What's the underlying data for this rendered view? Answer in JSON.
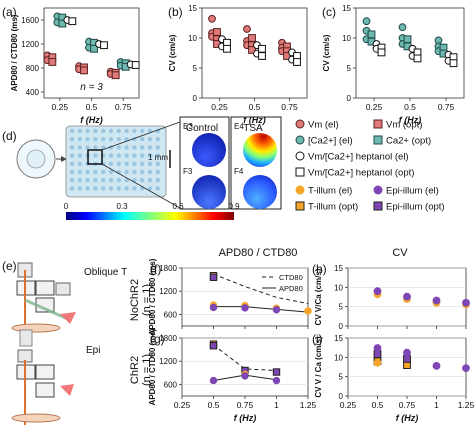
{
  "chart_data": [
    {
      "panel": "(a)",
      "type": "scatter",
      "ylabel": "APD80 / CTD80 (ms)",
      "xlabel": "f (Hz)",
      "categories": [
        "0.25",
        "0.5",
        "0.75"
      ],
      "yticks": [
        "400",
        "800",
        "1200",
        "1600"
      ],
      "ylim": [
        300,
        1800
      ],
      "annotation": "n = 3",
      "series": [
        {
          "name": "Vm (el)",
          "values": [
            [
              1010,
              930
            ],
            [
              830,
              780
            ],
            [
              740,
              700
            ]
          ]
        },
        {
          "name": "Vm (opt)",
          "values": [
            [
              980,
              900
            ],
            [
              810,
              760
            ],
            [
              720,
              680
            ]
          ]
        },
        {
          "name": "[Ca2+] (el)",
          "values": [
            [
              1660,
              1560
            ],
            [
              1240,
              1140
            ],
            [
              900,
              840
            ]
          ]
        },
        {
          "name": "Ca2+ (opt)",
          "values": [
            [
              1640,
              1540
            ],
            [
              1220,
              1120
            ],
            [
              880,
              820
            ]
          ]
        },
        {
          "name": "Vm/[Ca2+] heptanol (el)",
          "values": [
            [
              1600
            ],
            [
              1200
            ],
            [
              860
            ]
          ]
        },
        {
          "name": "Vm/[Ca2+] heptanol (opt)",
          "values": [
            [
              1580
            ],
            [
              1180
            ],
            [
              850
            ]
          ]
        }
      ]
    },
    {
      "panel": "(b)",
      "type": "scatter",
      "ylabel": "CV (cm/s)",
      "xlabel": "f (Hz)",
      "categories": [
        "0.25",
        "0.5",
        "0.75"
      ],
      "yticks": [
        "0",
        "5",
        "10",
        "15"
      ],
      "ylim": [
        0,
        15
      ],
      "series": [
        {
          "name": "Vm (el)",
          "values": [
            [
              13.2,
              10.8,
              10.2
            ],
            [
              11.5,
              9.5,
              8.8
            ],
            [
              9.2,
              8.4,
              7.8
            ]
          ]
        },
        {
          "name": "Vm (opt)",
          "values": [
            [
              11.0,
              9.8,
              9.0
            ],
            [
              10.0,
              8.8,
              8.0
            ],
            [
              8.6,
              7.8,
              7.0
            ]
          ]
        },
        {
          "name": "Vm/[Ca2+] heptanol (el)",
          "values": [
            [
              9.8,
              8.6
            ],
            [
              8.8,
              7.4
            ],
            [
              7.6,
              6.4
            ]
          ]
        },
        {
          "name": "Vm/[Ca2+] heptanol (opt)",
          "values": [
            [
              9.2,
              8.2
            ],
            [
              8.2,
              7.0
            ],
            [
              7.0,
              6.0
            ]
          ]
        }
      ]
    },
    {
      "panel": "(c)",
      "type": "scatter",
      "ylabel": "CV (cm/s)",
      "xlabel": "f (Hz)",
      "categories": [
        "0.25",
        "0.5",
        "0.75"
      ],
      "yticks": [
        "0",
        "5",
        "10",
        "15"
      ],
      "ylim": [
        0,
        15
      ],
      "series": [
        {
          "name": "[Ca2+] (el)",
          "values": [
            [
              12.8,
              11.2,
              9.8
            ],
            [
              11.8,
              10.0,
              9.0
            ],
            [
              9.6,
              8.6,
              7.8
            ]
          ]
        },
        {
          "name": "Ca2+ (opt)",
          "values": [
            [
              10.6,
              9.4
            ],
            [
              9.8,
              8.6
            ],
            [
              8.4,
              7.4
            ]
          ]
        },
        {
          "name": "Vm/[Ca2+] heptanol (el)",
          "values": [
            [
              9.0,
              8.2
            ],
            [
              8.2,
              7.0
            ],
            [
              7.2,
              6.2
            ]
          ]
        },
        {
          "name": "Vm/[Ca2+] heptanol (opt)",
          "values": [
            [
              8.4,
              7.6
            ],
            [
              7.6,
              6.6
            ],
            [
              6.8,
              5.8
            ]
          ]
        }
      ]
    },
    {
      "panel": "(f)",
      "type": "line",
      "ylabel": "APD80 / CTD80 (ms)",
      "xlabel": "",
      "x": [
        0.5,
        0.75,
        1.0,
        1.25
      ],
      "xlim": [
        0.25,
        1.25
      ],
      "ylim": [
        300,
        1800
      ],
      "yticks": [
        "600",
        "1200",
        "1800"
      ],
      "xticks": [
        "0.25",
        "0.5",
        "0.75",
        "1",
        "1.25"
      ],
      "row_label": [
        "NoChR2",
        "(n = 1)"
      ],
      "legend": [
        "CTD80",
        "APD80"
      ],
      "series": [
        {
          "name": "CTD80",
          "x": [
            0.5,
            0.75,
            1.0,
            1.25
          ],
          "values": [
            1640,
            1320,
            1040,
            880
          ]
        },
        {
          "name": "APD80",
          "x": [
            0.5,
            0.75,
            1.0,
            1.25
          ],
          "values": [
            800,
            800,
            730,
            660
          ]
        }
      ],
      "markers": [
        {
          "kind": "T-illum (el)",
          "x": [
            0.5,
            0.75,
            1.0,
            1.25
          ],
          "values": [
            840,
            830,
            760,
            690
          ]
        },
        {
          "kind": "Epi-illum (el)",
          "x": [
            0.5,
            0.75,
            1.0
          ],
          "values": [
            780,
            770,
            720
          ]
        },
        {
          "kind": "T-illum (opt)",
          "x": [
            0.5
          ],
          "values": [
            1600
          ]
        },
        {
          "kind": "Epi-illum (opt)",
          "x": [
            0.5
          ],
          "values": [
            1560
          ]
        }
      ]
    },
    {
      "panel": "(g)",
      "type": "line",
      "ylabel": "APD80 / CTD80 (ms)",
      "xlabel": "f (Hz)",
      "x": [
        0.5,
        0.75,
        1.0
      ],
      "xlim": [
        0.25,
        1.25
      ],
      "ylim": [
        300,
        1800
      ],
      "yticks": [
        "600",
        "1200",
        "1800"
      ],
      "xticks": [
        "0.25",
        "0.5",
        "0.75",
        "1",
        "1.25"
      ],
      "row_label": [
        "ChR2",
        "(n = 1)"
      ],
      "series": [
        {
          "name": "CTD80",
          "x": [
            0.5,
            0.75,
            1.0
          ],
          "values": [
            1620,
            1000,
            960
          ]
        },
        {
          "name": "APD80",
          "x": [
            0.5,
            0.75,
            1.0
          ],
          "values": [
            700,
            840,
            720
          ]
        }
      ],
      "markers": [
        {
          "kind": "T-illum (opt)",
          "x": [
            0.5
          ],
          "values": [
            1640
          ]
        },
        {
          "kind": "Epi-illum (opt)",
          "x": [
            0.5,
            0.75,
            1.0
          ],
          "values": [
            1600,
            960,
            920
          ]
        },
        {
          "kind": "T-illum (el)",
          "x": [
            0.75
          ],
          "values": [
            860
          ]
        },
        {
          "kind": "Epi-illum (el)",
          "x": [
            0.5,
            0.75,
            1.0
          ],
          "values": [
            700,
            820,
            700
          ]
        }
      ]
    },
    {
      "panel": "(h)",
      "type": "scatter",
      "ylabel": "CV V/Ca (cm/s)",
      "xlabel": "",
      "xlim": [
        0.25,
        1.25
      ],
      "ylim": [
        0,
        15
      ],
      "yticks": [
        "0",
        "5",
        "10",
        "15"
      ],
      "xticks": [
        "0.25",
        "0.5",
        "0.75",
        "1",
        "1.25"
      ],
      "series": [
        {
          "name": "T-illum (el)",
          "x": [
            0.5,
            0.75,
            1.0,
            1.25
          ],
          "values": [
            8.2,
            7.0,
            6.0,
            5.6
          ]
        },
        {
          "name": "Epi-illum (el)",
          "x": [
            0.5,
            0.75,
            1.0,
            1.25
          ],
          "values": [
            9.0,
            7.6,
            6.6,
            6.0
          ]
        }
      ]
    },
    {
      "panel": "(i)",
      "type": "scatter",
      "ylabel": "CV V / Ca (cm/s)",
      "xlabel": "f (Hz)",
      "xlim": [
        0.25,
        1.25
      ],
      "ylim": [
        0,
        15
      ],
      "yticks": [
        "0",
        "5",
        "10",
        "15"
      ],
      "xticks": [
        "0.25",
        "0.5",
        "0.75",
        "1",
        "1.25"
      ],
      "series": [
        {
          "name": "T-illum (opt)",
          "x": [
            0.5,
            0.75
          ],
          "values": [
            9.0,
            8.0
          ]
        },
        {
          "name": "Epi-illum (opt)",
          "x": [
            0.5,
            0.75
          ],
          "values": [
            10.8,
            9.6
          ]
        },
        {
          "name": "T-illum (el)",
          "x": [
            0.5
          ],
          "values": [
            8.6
          ]
        },
        {
          "name": "Epi-illum (el)",
          "x": [
            0.5,
            0.75,
            1.0,
            1.25
          ],
          "values": [
            12.4,
            11.2,
            7.8,
            7.2
          ]
        }
      ]
    }
  ],
  "legend_top": {
    "items": [
      "Vm (el)",
      "Vm (opt)",
      "[Ca2+] (el)",
      "Ca2+ (opt)",
      "Vm/[Ca2+] heptanol (el)",
      "Vm/[Ca2+] heptanol (opt)"
    ]
  },
  "legend_bottom": {
    "items": [
      "T-illum (el)",
      "Epi-illum (el)",
      "T-illum (opt)",
      "Epi-illum (opt)"
    ]
  },
  "panel_d": {
    "label": "(d)",
    "control": "Control",
    "tsa": "TSA",
    "wells": [
      "E3",
      "E4",
      "F3",
      "F4"
    ],
    "scale": "1 mm",
    "colorbar_ticks": [
      "0",
      "0.3",
      "0.6",
      "0.9"
    ]
  },
  "panel_e": {
    "label": "(e)",
    "oblique": "Oblique T",
    "epi": "Epi"
  },
  "column_titles": {
    "f": "APD80 / CTD80",
    "h": "CV"
  },
  "colors": {
    "vm_fill": "#e07a7a",
    "vm_edge": "#5a2020",
    "ca_fill": "#6db8b0",
    "ca_edge": "#1e4a48",
    "t_illum": "#f5a52a",
    "epi_illum": "#7e46b4"
  }
}
